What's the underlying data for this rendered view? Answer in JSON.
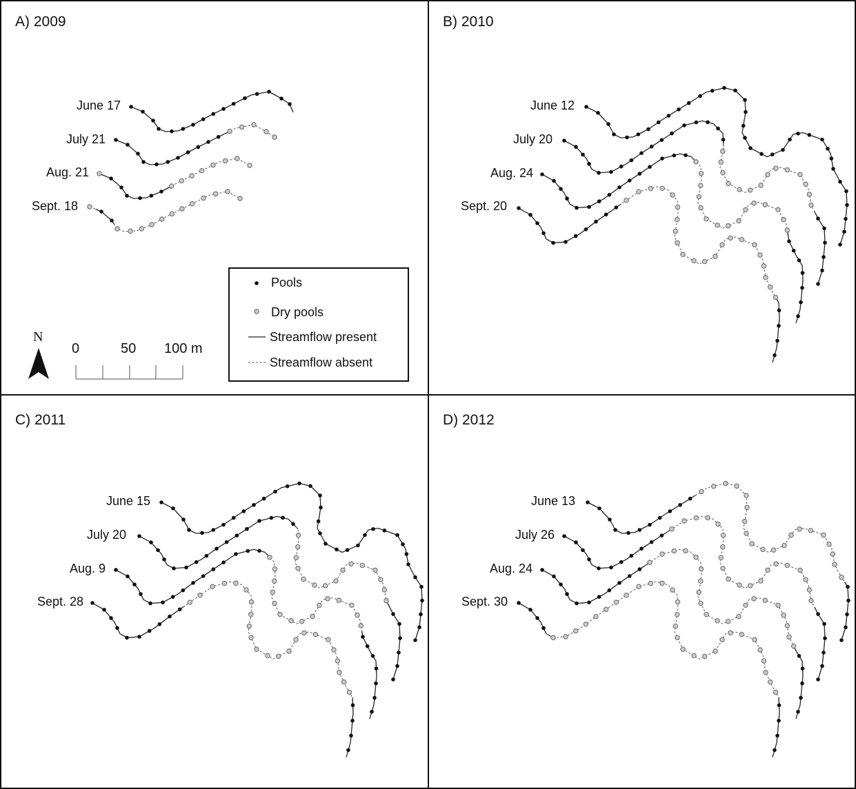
{
  "panels": [
    {
      "title": "A) 2009",
      "dates": [
        "June 17",
        "July 21",
        "Aug. 21",
        "Sept. 18"
      ]
    },
    {
      "title": "B) 2010",
      "dates": [
        "June 12",
        "July 20",
        "Aug. 24",
        "Sept. 20"
      ]
    },
    {
      "title": "C) 2011",
      "dates": [
        "June 15",
        "July 20",
        "Aug. 9",
        "Sept. 28"
      ]
    },
    {
      "title": "D) 2012",
      "dates": [
        "June 13",
        "July 26",
        "Aug. 24",
        "Sept. 30"
      ]
    }
  ],
  "legend": {
    "pools": "Pools",
    "dry_pools": "Dry pools",
    "streamflow_present": "Streamflow present",
    "streamflow_absent": "Streamflow absent"
  },
  "north_arrow": {
    "label": "N"
  },
  "scale_bar": {
    "labels": [
      "0",
      "50",
      "100 m"
    ]
  },
  "colors": {
    "pool": "#111111",
    "dry_pool": "#c8c8c8",
    "line": "#222222"
  }
}
